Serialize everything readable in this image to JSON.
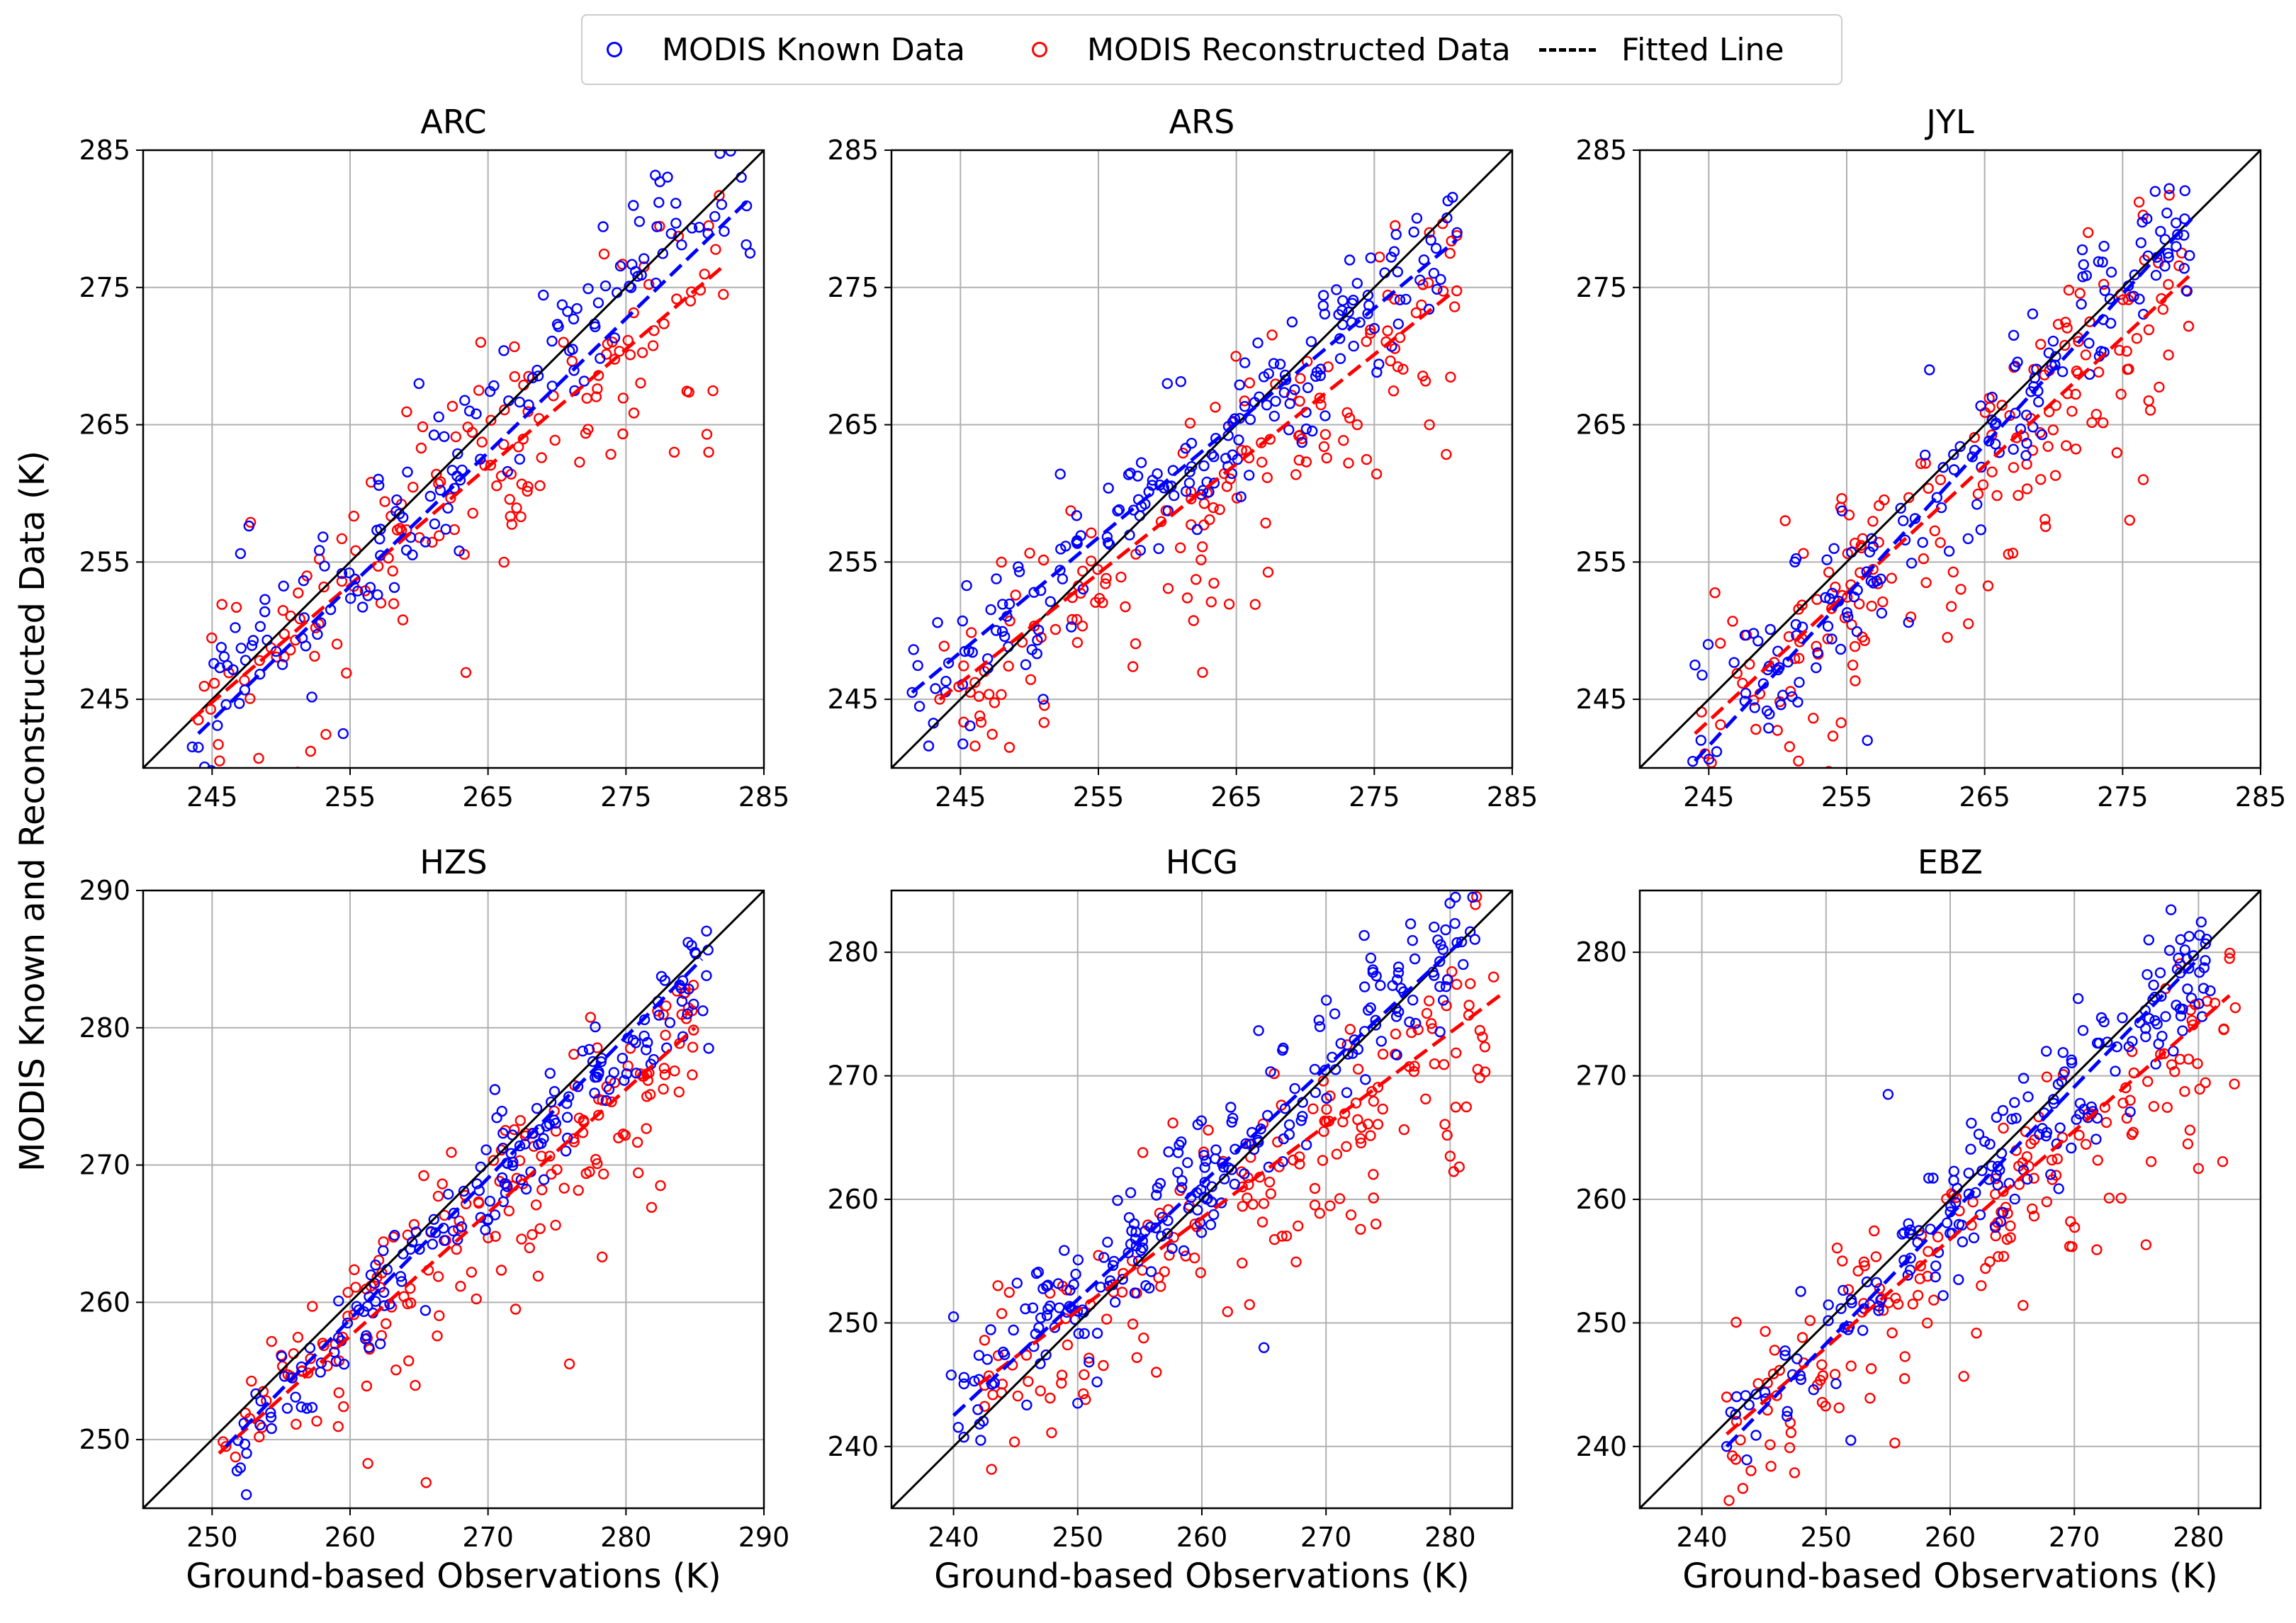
{
  "figure": {
    "ylabel": "MODIS Known and  Reconstructed Data (K)",
    "xlabel": "Ground-based Observations (K)"
  },
  "legend": {
    "known_label": "MODIS Known Data",
    "recon_label": "MODIS Reconstructed Data",
    "fit_label": "Fitted Line"
  },
  "colors": {
    "known": "#0000ff",
    "recon": "#ff0000",
    "identity": "#000000",
    "grid": "#b0b0b0"
  },
  "chart_data": [
    {
      "type": "scatter",
      "title": "ARC",
      "xlim": [
        240,
        285
      ],
      "ylim": [
        240,
        285
      ],
      "xticks": [
        245,
        255,
        265,
        275,
        285
      ],
      "yticks": [
        245,
        255,
        265,
        275,
        285
      ],
      "xlabel": "",
      "ylabel": "",
      "known": {
        "n": 150,
        "xr": [
          243.5,
          284
        ],
        "slope": 1.0,
        "intercept": 0,
        "noise": 2.8,
        "seed": 11
      },
      "recon": {
        "n": 150,
        "xr": [
          243.5,
          283
        ],
        "slope": 0.84,
        "intercept": 39.5,
        "noise": 3.6,
        "seed": 12
      },
      "fit_known": {
        "x": [
          244,
          284
        ],
        "y": [
          242.5,
          281.5
        ]
      },
      "fit_recon": {
        "x": [
          243.5,
          282
        ],
        "y": [
          243.5,
          276.5
        ]
      },
      "sample_points": {
        "known": [
          [
            244,
            241.5
          ],
          [
            254.5,
            242.5
          ],
          [
            260,
            268
          ],
          [
            284,
            277.5
          ]
        ],
        "recon": [
          [
            244,
            243.5
          ],
          [
            278.5,
            263
          ],
          [
            281,
            263
          ],
          [
            281,
            279.5
          ]
        ]
      }
    },
    {
      "type": "scatter",
      "title": "ARS",
      "xlim": [
        240,
        285
      ],
      "ylim": [
        240,
        285
      ],
      "xticks": [
        245,
        255,
        265,
        275,
        285
      ],
      "yticks": [
        245,
        255,
        265,
        275,
        285
      ],
      "xlabel": "",
      "ylabel": "",
      "known": {
        "n": 190,
        "xr": [
          241.5,
          281
        ],
        "slope": 0.86,
        "intercept": 37,
        "noise": 2.6,
        "seed": 21
      },
      "recon": {
        "n": 150,
        "xr": [
          243,
          281
        ],
        "slope": 0.79,
        "intercept": 52.5,
        "noise": 3.0,
        "seed": 22
      },
      "fit_known": {
        "x": [
          241.5,
          281
        ],
        "y": [
          245.5,
          278.5
        ]
      },
      "fit_recon": {
        "x": [
          243.5,
          280.5
        ],
        "y": [
          245,
          274.5
        ]
      },
      "sample_points": {
        "known": [
          [
            241.5,
            245.5
          ],
          [
            251,
            245
          ],
          [
            260,
            268
          ],
          [
            281,
            279
          ]
        ],
        "recon": [
          [
            243.5,
            245
          ],
          [
            279,
            265
          ],
          [
            279,
            279
          ]
        ]
      }
    },
    {
      "type": "scatter",
      "title": "JYL",
      "xlim": [
        240,
        285
      ],
      "ylim": [
        240,
        285
      ],
      "xticks": [
        245,
        255,
        265,
        275,
        285
      ],
      "yticks": [
        245,
        255,
        265,
        275,
        285
      ],
      "xlabel": "",
      "ylabel": "",
      "known": {
        "n": 160,
        "xr": [
          243.5,
          280
        ],
        "slope": 1.08,
        "intercept": -22.2,
        "noise": 2.8,
        "seed": 31
      },
      "recon": {
        "n": 170,
        "xr": [
          243.5,
          280
        ],
        "slope": 0.93,
        "intercept": 16.5,
        "noise": 3.4,
        "seed": 32
      },
      "fit_known": {
        "x": [
          244,
          280
        ],
        "y": [
          240.5,
          280
        ]
      },
      "fit_recon": {
        "x": [
          244,
          280
        ],
        "y": [
          242.5,
          276
        ]
      },
      "sample_points": {
        "known": [
          [
            244,
            247.5
          ],
          [
            256.5,
            242
          ],
          [
            261,
            269
          ],
          [
            279.5,
            280
          ]
        ],
        "recon": [
          [
            251.5,
            240.5
          ],
          [
            272.5,
            279
          ],
          [
            276.5,
            261
          ]
        ]
      }
    },
    {
      "type": "scatter",
      "title": "HZS",
      "xlim": [
        245,
        290
      ],
      "ylim": [
        245,
        290
      ],
      "xticks": [
        250,
        260,
        270,
        280,
        290
      ],
      "yticks": [
        250,
        260,
        270,
        280,
        290
      ],
      "xlabel": "Ground-based Observations (K)",
      "ylabel": "",
      "known": {
        "n": 170,
        "xr": [
          251,
          286
        ],
        "slope": 1.01,
        "intercept": -4.5,
        "noise": 1.8,
        "seed": 41
      },
      "recon": {
        "n": 180,
        "xr": [
          250.5,
          285
        ],
        "slope": 0.88,
        "intercept": 29.5,
        "noise": 2.8,
        "seed": 42
      },
      "fit_known": {
        "x": [
          251,
          285.5
        ],
        "y": [
          249.5,
          285
        ]
      },
      "fit_recon": {
        "x": [
          250.5,
          285
        ],
        "y": [
          249,
          280
        ]
      },
      "sample_points": {
        "known": [
          [
            252.5,
            249
          ],
          [
            270.5,
            275.5
          ],
          [
            285,
            285.5
          ],
          [
            286,
            278.5
          ]
        ],
        "recon": [
          [
            251,
            249.5
          ],
          [
            272,
            259.5
          ],
          [
            282.5,
            268.5
          ]
        ]
      }
    },
    {
      "type": "scatter",
      "title": "HCG",
      "xlim": [
        235,
        285
      ],
      "ylim": [
        235,
        285
      ],
      "xticks": [
        240,
        250,
        260,
        270,
        280
      ],
      "yticks": [
        240,
        250,
        260,
        270,
        280
      ],
      "xlabel": "Ground-based Observations (K)",
      "ylabel": "",
      "known": {
        "n": 230,
        "xr": [
          239.5,
          282
        ],
        "slope": 0.96,
        "intercept": 12,
        "noise": 2.6,
        "seed": 51
      },
      "recon": {
        "n": 170,
        "xr": [
          242,
          284
        ],
        "slope": 0.78,
        "intercept": 55.5,
        "noise": 3.4,
        "seed": 52
      },
      "fit_known": {
        "x": [
          240,
          281
        ],
        "y": [
          242.5,
          281
        ]
      },
      "fit_recon": {
        "x": [
          242,
          284
        ],
        "y": [
          245,
          276.5
        ]
      },
      "sample_points": {
        "known": [
          [
            240,
            250.5
          ],
          [
            250,
            243.5
          ],
          [
            265,
            248
          ],
          [
            279,
            281
          ]
        ],
        "recon": [
          [
            247,
            244.5
          ],
          [
            280,
            263.5
          ],
          [
            283.5,
            278
          ]
        ]
      }
    },
    {
      "type": "scatter",
      "title": "EBZ",
      "xlim": [
        235,
        285
      ],
      "ylim": [
        235,
        285
      ],
      "xticks": [
        240,
        250,
        260,
        270,
        280
      ],
      "yticks": [
        240,
        250,
        260,
        270,
        280
      ],
      "xlabel": "Ground-based Observations (K)",
      "ylabel": "",
      "known": {
        "n": 190,
        "xr": [
          242,
          281
        ],
        "slope": 1.0,
        "intercept": -1,
        "noise": 2.8,
        "seed": 61
      },
      "recon": {
        "n": 170,
        "xr": [
          242,
          283
        ],
        "slope": 0.86,
        "intercept": 32.5,
        "noise": 3.4,
        "seed": 62
      },
      "fit_known": {
        "x": [
          242,
          280
        ],
        "y": [
          240,
          279.5
        ]
      },
      "fit_recon": {
        "x": [
          242,
          282.5
        ],
        "y": [
          241,
          276.5
        ]
      },
      "sample_points": {
        "known": [
          [
            242,
            240
          ],
          [
            252,
            240.5
          ],
          [
            255,
            268.5
          ],
          [
            276,
            281
          ]
        ],
        "recon": [
          [
            242,
            244
          ],
          [
            280,
            262.5
          ],
          [
            282.5,
            279.5
          ]
        ]
      }
    }
  ]
}
